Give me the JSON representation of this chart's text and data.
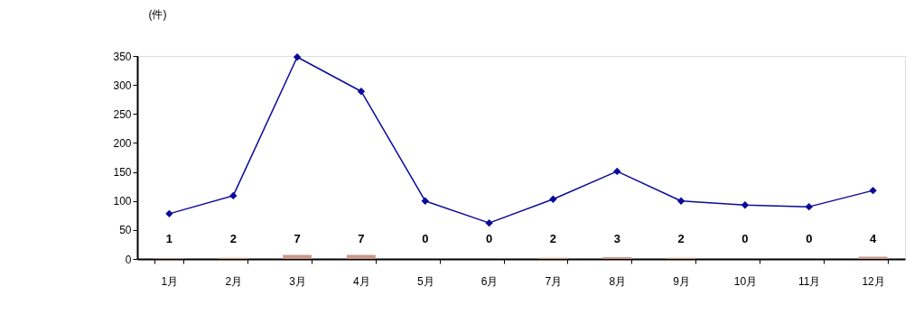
{
  "chart_data": {
    "type": "line",
    "ylabel": "(件)",
    "categories": [
      "1月",
      "2月",
      "3月",
      "4月",
      "5月",
      "6月",
      "7月",
      "8月",
      "9月",
      "10月",
      "11月",
      "12月"
    ],
    "series": [
      {
        "type": "bar",
        "color": "#c89a8a",
        "values": [
          1,
          2,
          7,
          7,
          0,
          0,
          2,
          3,
          2,
          0,
          0,
          4
        ],
        "value_labels": [
          "1",
          "2",
          "7",
          "7",
          "0",
          "0",
          "2",
          "3",
          "2",
          "0",
          "0",
          "4"
        ]
      },
      {
        "color": "#0a0a9a",
        "values": [
          78,
          109,
          348,
          289,
          100,
          62,
          103,
          151,
          100,
          93,
          90,
          118
        ]
      }
    ],
    "ylim": [
      0,
      350
    ],
    "yticks": [
      0,
      50,
      100,
      150,
      200,
      250,
      300,
      350
    ],
    "grid": false,
    "marker": "diamond",
    "line_style": "solid"
  }
}
